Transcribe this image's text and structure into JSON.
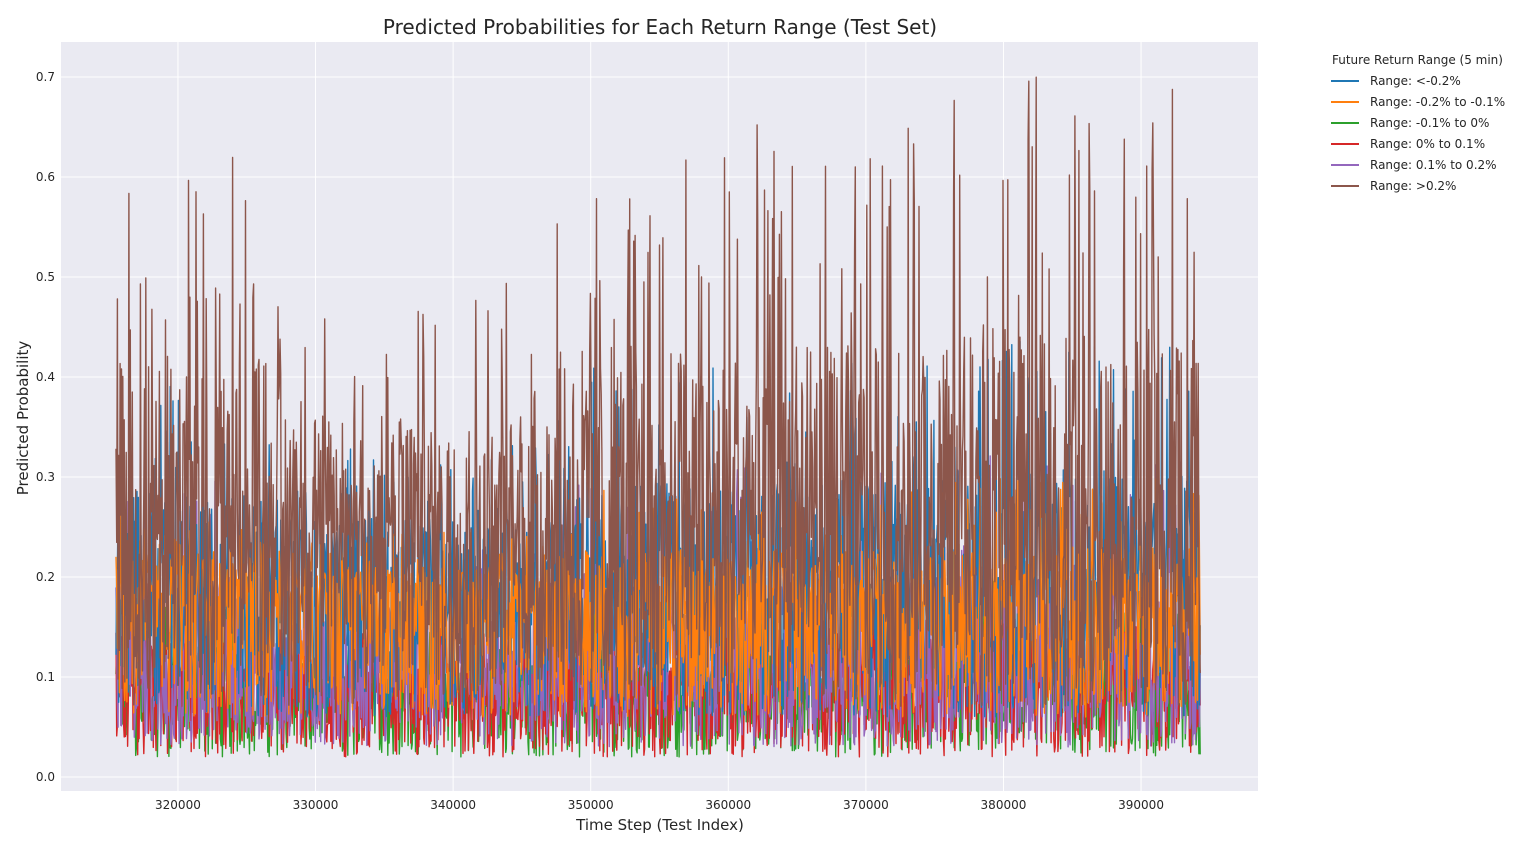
{
  "chart_data": {
    "type": "line",
    "title": "Predicted Probabilities for Each Return Range (Test Set)",
    "xlabel": "Time Step (Test Index)",
    "ylabel": "Predicted Probability",
    "xlim": [
      311500,
      398500
    ],
    "ylim": [
      -0.014,
      0.735
    ],
    "xticks": [
      320000,
      330000,
      340000,
      350000,
      360000,
      370000,
      380000,
      390000
    ],
    "xtick_labels": [
      "320000",
      "330000",
      "340000",
      "350000",
      "360000",
      "370000",
      "380000",
      "390000"
    ],
    "yticks": [
      0.0,
      0.1,
      0.2,
      0.3,
      0.4,
      0.5,
      0.6,
      0.7
    ],
    "ytick_labels": [
      "0.0",
      "0.1",
      "0.2",
      "0.3",
      "0.4",
      "0.5",
      "0.6",
      "0.7"
    ],
    "x_range": [
      315500,
      394300
    ],
    "grid": true,
    "legend_title": "Future Return Range (5 min)",
    "legend_location": "outside-upper-right",
    "series": [
      {
        "name": "Range: <-0.2%",
        "color": "#1f77b4",
        "approx_low": 0.06,
        "approx_typical": 0.2,
        "approx_high": 0.44
      },
      {
        "name": "Range: -0.2% to -0.1%",
        "color": "#ff7f0e",
        "approx_low": 0.06,
        "approx_typical": 0.18,
        "approx_high": 0.3
      },
      {
        "name": "Range: -0.1% to 0%",
        "color": "#2ca02c",
        "approx_low": 0.02,
        "approx_typical": 0.09,
        "approx_high": 0.2
      },
      {
        "name": "Range: 0% to 0.1%",
        "color": "#d62728",
        "approx_low": 0.02,
        "approx_typical": 0.1,
        "approx_high": 0.22
      },
      {
        "name": "Range: 0.1% to 0.2%",
        "color": "#9467bd",
        "approx_low": 0.03,
        "approx_typical": 0.12,
        "approx_high": 0.33
      },
      {
        "name": "Range: >0.2%",
        "color": "#8c564b",
        "approx_low": 0.07,
        "approx_typical": 0.25,
        "approx_high": 0.7
      }
    ],
    "background_color": "#eaeaf2",
    "grid_color": "#ffffff"
  }
}
